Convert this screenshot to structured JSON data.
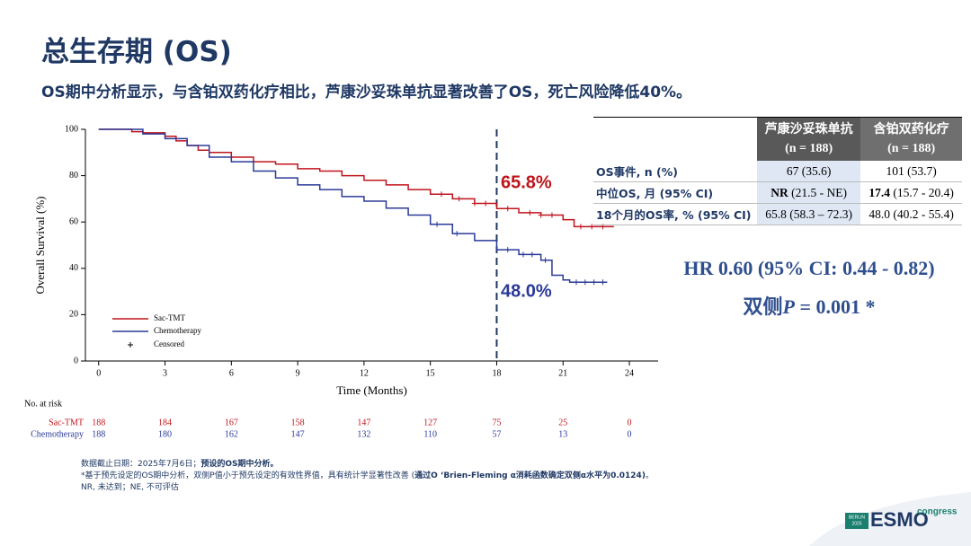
{
  "header": {
    "title": "总生存期 (OS)",
    "subtitle": "OS期中分析显示，与含铂双药化疗相比，芦康沙妥珠单抗显著改善了OS，死亡风险降低40%。"
  },
  "chart_data": {
    "type": "step",
    "x_label": "Time (Months)",
    "y_label": "Overall Survival (%)",
    "xlim": [
      -0.6,
      25.3
    ],
    "ylim": [
      0,
      100
    ],
    "xticks": [
      0,
      3,
      6,
      9,
      12,
      15,
      18,
      21,
      24
    ],
    "yticks": [
      0,
      20,
      40,
      60,
      80,
      100
    ],
    "reference_x": 18,
    "series": [
      {
        "name": "Sac-TMT",
        "color": "#c0141c",
        "x": [
          0,
          1,
          1.5,
          2,
          3,
          3.5,
          4,
          4.5,
          5,
          6,
          7,
          8,
          9,
          10,
          11,
          12,
          13,
          14,
          15,
          16,
          17,
          18,
          19,
          20,
          21,
          21.5,
          23.3
        ],
        "values": [
          100,
          100,
          99,
          98.5,
          97,
          95,
          93,
          91,
          90,
          88,
          86,
          85,
          83,
          82,
          80,
          78,
          76,
          74,
          72,
          70,
          68,
          65.8,
          64,
          63,
          61,
          58,
          58
        ],
        "censored": {
          "x": [
            15.5,
            16.3,
            17,
            17.5,
            18.5,
            19.5,
            20,
            20.5,
            21.8,
            22.3,
            22.8
          ],
          "y": [
            72,
            70,
            68,
            68,
            65.8,
            64,
            63,
            63,
            58,
            58,
            58
          ]
        },
        "at_risk": [
          188,
          184,
          167,
          158,
          147,
          127,
          75,
          25,
          0
        ]
      },
      {
        "name": "Chemotherapy",
        "color": "#2b3a98",
        "x": [
          0,
          1,
          2,
          3,
          4,
          5,
          6,
          7,
          8,
          9,
          10,
          11,
          12,
          13,
          14,
          15,
          16,
          17,
          18,
          19,
          20,
          20.5,
          21,
          21.3,
          23
        ],
        "values": [
          100,
          100,
          98,
          96,
          93,
          88,
          86,
          82,
          79,
          76,
          74,
          71,
          69,
          66,
          63,
          59,
          55,
          52,
          48,
          46,
          43.5,
          37,
          35,
          34,
          34
        ],
        "censored": {
          "x": [
            15.3,
            16.2,
            18.5,
            19.2,
            19.6,
            20.2,
            21.6,
            22,
            22.4,
            22.8
          ],
          "y": [
            59,
            55,
            48,
            46,
            46,
            43.5,
            34,
            34,
            34,
            34
          ]
        },
        "at_risk": [
          188,
          180,
          162,
          147,
          132,
          110,
          57,
          13,
          0
        ]
      }
    ],
    "censored_label": "Censored",
    "risk_title": "No. at risk",
    "annotations": [
      {
        "text": "65.8%",
        "color": "#c0141c"
      },
      {
        "text": "48.0%",
        "color": "#2b3a98"
      }
    ]
  },
  "table": {
    "columns": [
      {
        "name": "芦康沙妥珠单抗",
        "n": "(n = 188)"
      },
      {
        "name": "含铂双药化疗",
        "n": "(n = 188)"
      }
    ],
    "rows": [
      {
        "label": "OS事件, n (%)",
        "cells": [
          [
            {
              "text": "67 (35.6)"
            }
          ],
          [
            {
              "text": "101 (53.7)"
            }
          ]
        ]
      },
      {
        "label": "中位OS, 月 (95% CI)",
        "cells": [
          [
            {
              "text": "NR",
              "bold": true
            },
            {
              "text": " (21.5 - NE)"
            }
          ],
          [
            {
              "text": "17.4",
              "bold": true
            },
            {
              "text": " (15.7 - 20.4)"
            }
          ]
        ]
      },
      {
        "label": "18个月的OS率, % (95% CI)",
        "cells": [
          [
            {
              "text": "65.8 (58.3 – 72.3)"
            }
          ],
          [
            {
              "text": "48.0 (40.2 - 55.4)"
            }
          ]
        ]
      }
    ]
  },
  "stats": {
    "hr": "HR 0.60 (95% CI: 0.44 - 0.82)",
    "p_parts": [
      "双侧",
      "P",
      " = 0.001 *"
    ]
  },
  "footnotes": [
    [
      {
        "text": "数据截止日期：2025年7月6日；"
      },
      {
        "text": "预设的OS期中分析。",
        "bold": true
      }
    ],
    [
      {
        "text": "*基于预先设定的OS期中分析，双侧P值小于预先设定的有效性界值，具有统计学显著性改善 ("
      },
      {
        "text": "通过O ‘Brien-Fleming α消耗函数确定双侧α水平为0.0124)",
        "bold": true
      },
      {
        "text": "。"
      }
    ],
    [
      {
        "text": "NR, 未达到；NE, 不可评估"
      }
    ]
  ],
  "logo": {
    "city": "BERLIN",
    "year": "2025",
    "brand": "ESMO",
    "suffix": "congress"
  }
}
